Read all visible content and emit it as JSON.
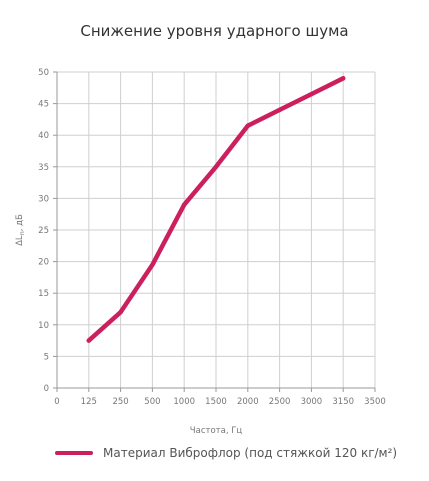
{
  "chart_data": {
    "type": "line",
    "title": "Снижение уровня ударного шума",
    "xlabel": "Частота, Гц",
    "ylabel": "ΔLn , дБ",
    "ylabel_main": "ΔL",
    "ylabel_sub": "n",
    "ylabel_unit": ", дБ",
    "x_ticks": [
      "0",
      "125",
      "250",
      "500",
      "1000",
      "1500",
      "2000",
      "2500",
      "3000",
      "3150",
      "3500"
    ],
    "y_ticks": [
      "0",
      "5",
      "10",
      "15",
      "20",
      "25",
      "30",
      "35",
      "40",
      "45",
      "50"
    ],
    "ylim": [
      0,
      50
    ],
    "grid": true,
    "series": [
      {
        "name": "Материал Виброфлор (под стяжкой 120 кг/м²)",
        "color": "#cc1f5e",
        "x": [
          "125",
          "250",
          "500",
          "1000",
          "1500",
          "2000",
          "2500",
          "3000",
          "3150"
        ],
        "values": [
          7.5,
          12,
          19.5,
          29,
          35,
          41.5,
          44,
          46.5,
          49
        ]
      }
    ],
    "legend": "bottom"
  }
}
